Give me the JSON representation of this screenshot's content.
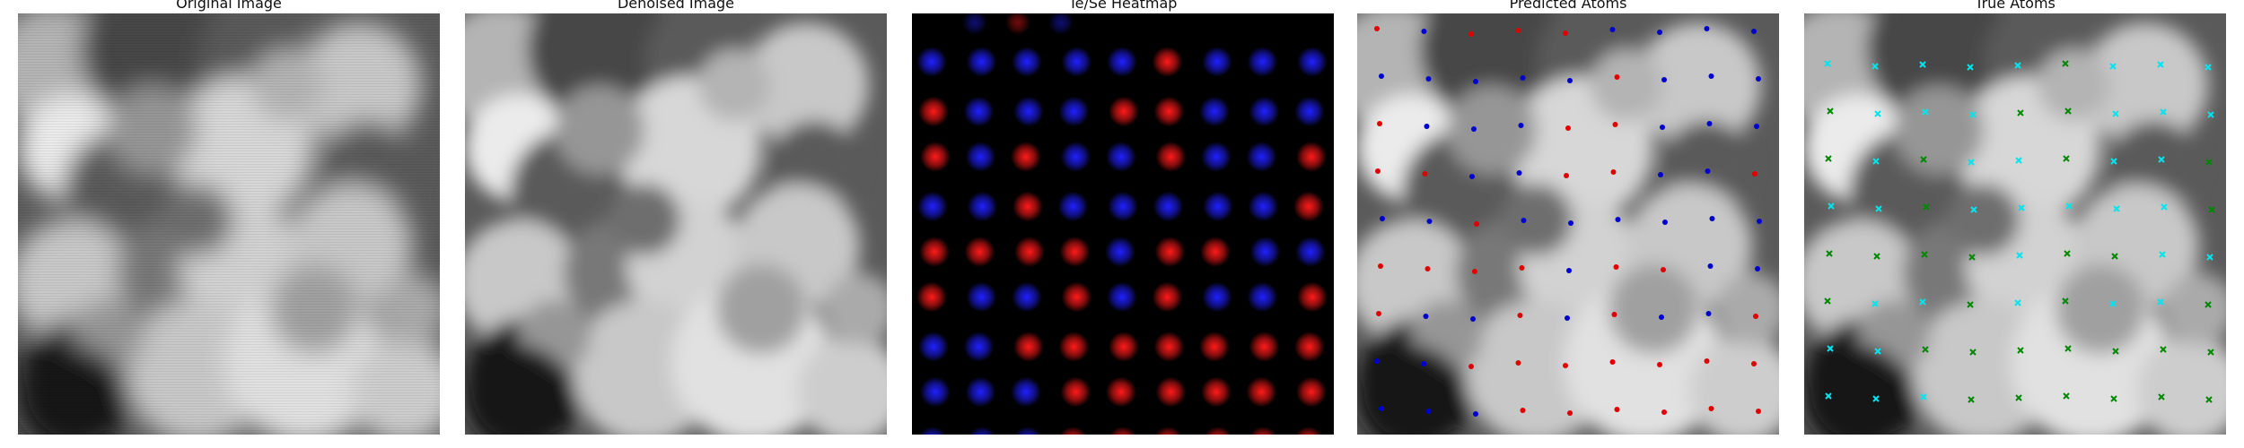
{
  "figure": {
    "panels": [
      {
        "title": "Original Image",
        "image": "grayscale-stm-micrograph"
      },
      {
        "title": "Denoised Image",
        "image": "grayscale-stm-micrograph-denoised"
      },
      {
        "title": "Te/Se Heatmap",
        "image": "red-blue-gaussian-heatmap"
      },
      {
        "title": "Predicted Atoms",
        "image": "micrograph-with-dot-markers"
      },
      {
        "title": "True Atoms",
        "image": "micrograph-with-x-markers"
      }
    ]
  },
  "colors": {
    "te_heat": "#ff1a1a",
    "se_heat": "#2020ff",
    "predicted_red": "#e00000",
    "predicted_blue": "#0000d0",
    "true_cyan": "#00e5ee",
    "true_green": "#008800"
  },
  "lattice": {
    "columns": 9,
    "rows": 9,
    "heatmap_labels": [
      "BBBBBRBBB",
      "RBBBRRBBB",
      "RBRBBRBBR",
      "BBRBBBBBR",
      "RRRRBRRBB",
      "RBBRBRBBR",
      "BBRRRRRRR",
      "BBBRRRRRR",
      "BBBRRRRRR"
    ],
    "predicted_labels": [
      "RBRRRBBBB",
      "BBBBBRBBB",
      "RBBBRRBBB",
      "RRBBRRBBR",
      "BBRBBBBBB",
      "RRRRBRRBB",
      "RBBRBRBBR",
      "BBRRRRRRR",
      "BBBRRRRRR"
    ],
    "true_labels": [
      "CCCCCGCCC",
      "GCCCGGCCC",
      "GCGCCGCCG",
      "CCGCCCCCG",
      "GGGGCGGCC",
      "GCCGCGCCG",
      "CCGGGGGGG",
      "CCCGGGGGG",
      "CCCGGGGGG"
    ]
  }
}
